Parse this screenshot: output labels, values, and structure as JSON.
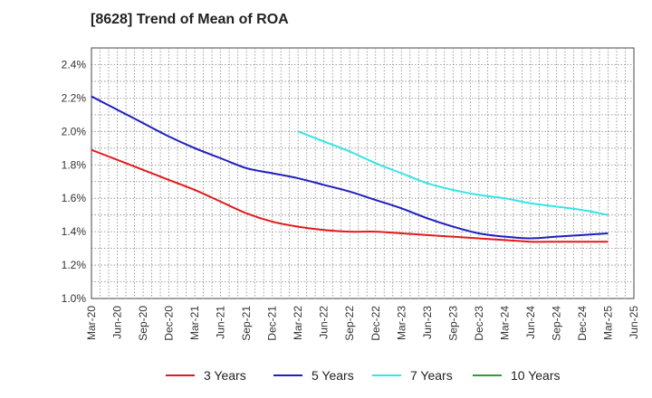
{
  "chart_data": {
    "type": "line",
    "title": "[8628]  Trend of Mean of ROA",
    "xlabel": "",
    "ylabel": "",
    "categories": [
      "Mar-20",
      "Jun-20",
      "Sep-20",
      "Dec-20",
      "Mar-21",
      "Jun-21",
      "Sep-21",
      "Dec-21",
      "Mar-22",
      "Jun-22",
      "Sep-22",
      "Dec-22",
      "Mar-23",
      "Jun-23",
      "Sep-23",
      "Dec-23",
      "Mar-24",
      "Jun-24",
      "Sep-24",
      "Dec-24",
      "Mar-25",
      "Jun-25"
    ],
    "y_ticks": [
      "1.0%",
      "1.2%",
      "1.4%",
      "1.6%",
      "1.8%",
      "2.0%",
      "2.2%",
      "2.4%"
    ],
    "ylim": [
      1.0,
      2.5
    ],
    "grid": true,
    "series": [
      {
        "name": "3 Years",
        "color": "#e31a1c",
        "values": [
          1.89,
          1.83,
          1.77,
          1.71,
          1.65,
          1.58,
          1.51,
          1.46,
          1.43,
          1.41,
          1.4,
          1.4,
          1.39,
          1.38,
          1.37,
          1.36,
          1.35,
          1.34,
          1.34,
          1.34,
          1.34,
          null
        ]
      },
      {
        "name": "5 Years",
        "color": "#1f1fbf",
        "values": [
          2.21,
          2.13,
          2.05,
          1.97,
          1.9,
          1.84,
          1.78,
          1.75,
          1.72,
          1.68,
          1.64,
          1.59,
          1.54,
          1.48,
          1.43,
          1.39,
          1.37,
          1.36,
          1.37,
          1.38,
          1.39,
          null
        ]
      },
      {
        "name": "7 Years",
        "color": "#33e6e6",
        "values": [
          null,
          null,
          null,
          null,
          null,
          null,
          null,
          null,
          2.0,
          1.94,
          1.88,
          1.81,
          1.75,
          1.69,
          1.65,
          1.62,
          1.6,
          1.57,
          1.55,
          1.53,
          1.5,
          null
        ]
      },
      {
        "name": "10 Years",
        "color": "#2ca02c",
        "values": [
          null,
          null,
          null,
          null,
          null,
          null,
          null,
          null,
          null,
          null,
          null,
          null,
          null,
          null,
          null,
          null,
          null,
          null,
          null,
          null,
          null,
          null
        ]
      }
    ]
  }
}
